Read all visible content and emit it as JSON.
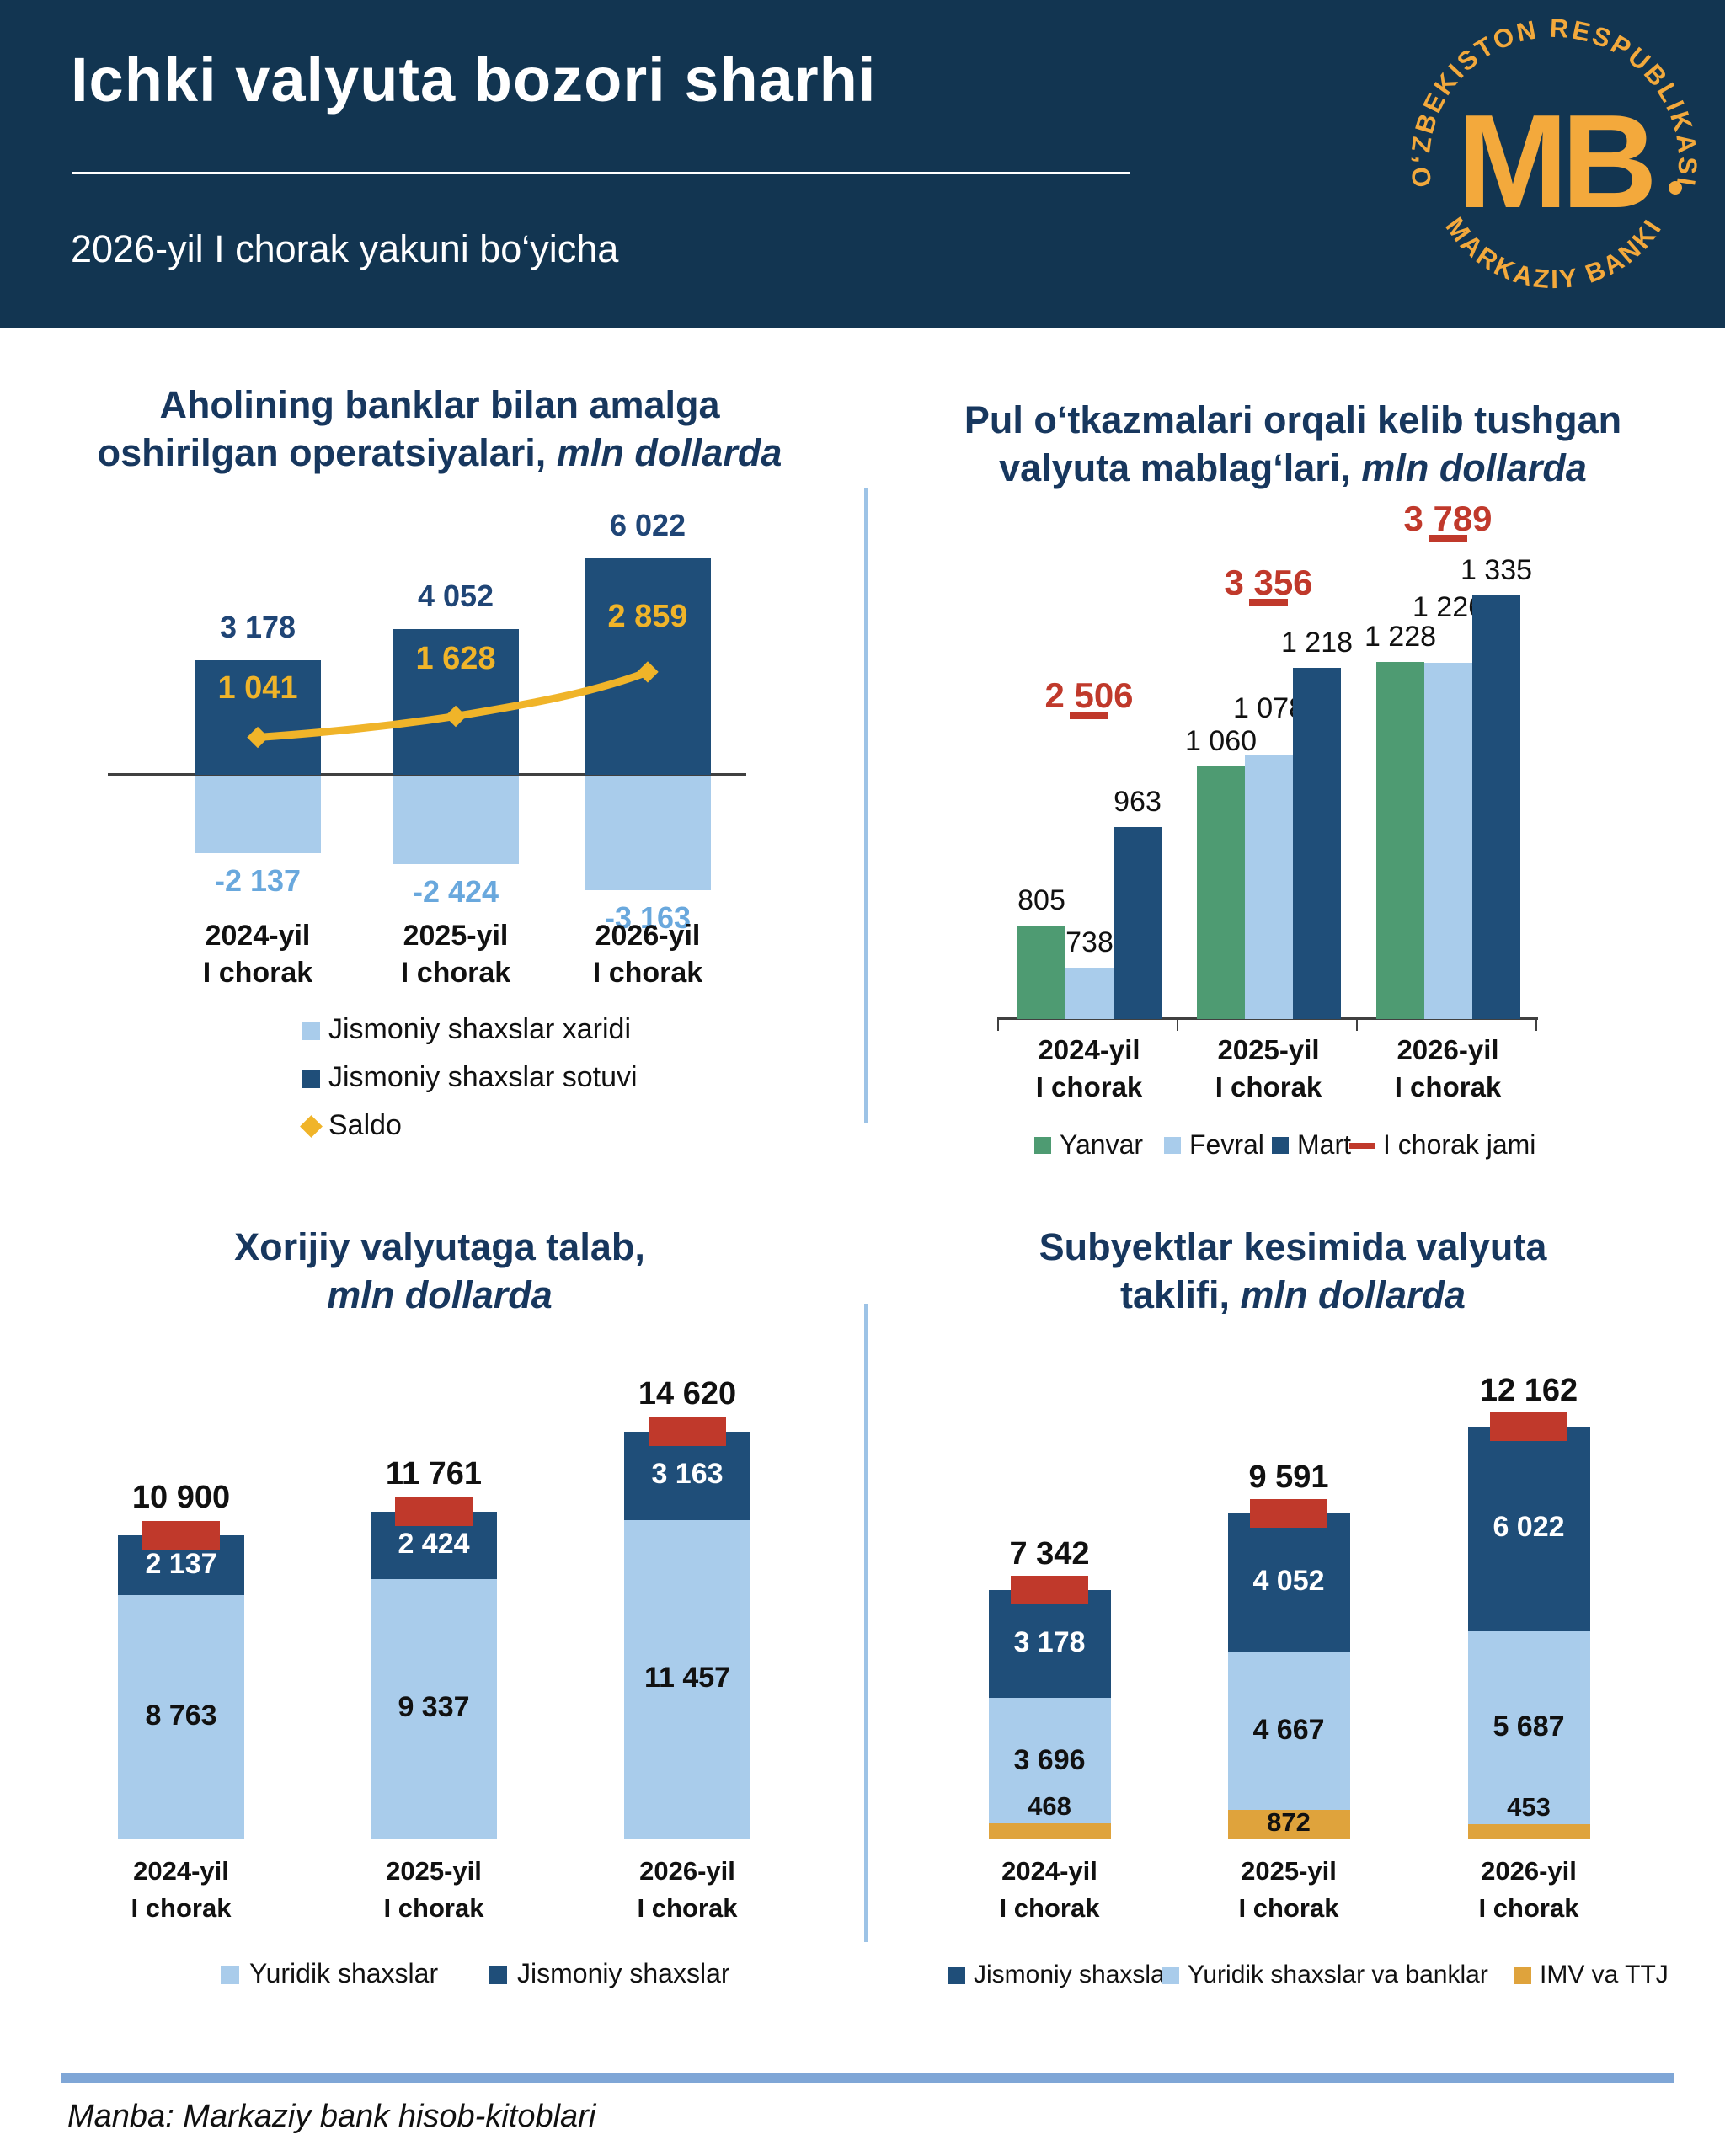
{
  "header": {
    "title": "Ichki valyuta  bozori sharhi",
    "subtitle": "2026-yil I chorak yakuni bo‘yicha",
    "logo": {
      "arc_top": "O‘ZBEKISTON RESPUBLIKASI",
      "arc_bottom": "MARKAZIY BANKI",
      "bullet": "•",
      "monogram": "MB"
    }
  },
  "footer": {
    "source": "Manba: Markaziy bank hisob-kitoblari"
  },
  "colors": {
    "navy_bg": "#123551",
    "title_navy": "#17375E",
    "dark_blue": "#1F4E79",
    "light_blue": "#A9CCEB",
    "green": "#4E9B72",
    "yellow": "#F0B429",
    "gold": "#DFA33C",
    "red": "#C0392B",
    "value_navy": "#1F4576",
    "neg_blue": "#69A8DD",
    "text_dark": "#111111",
    "axis_gray": "#404040",
    "separator": "#9DC3E6",
    "footer_rule": "#7FA6D6",
    "logo_orange": "#F3A93C",
    "white": "#FFFFFF"
  },
  "chart_data": [
    {
      "id": "operations",
      "type": "bar",
      "title_line1": "Aholining banklar bilan amalga",
      "title_line2": "oshirilgan operatsiyalari,",
      "title_italic": "mln dollarda",
      "categories": [
        [
          "2024-yil",
          "I chorak"
        ],
        [
          "2025-yil",
          "I chorak"
        ],
        [
          "2026-yil",
          "I chorak"
        ]
      ],
      "series": [
        {
          "name": "Jismoniy shaxslar xaridi",
          "color_key": "light_blue",
          "values": [
            -2137,
            -2424,
            -3163
          ]
        },
        {
          "name": "Jismoniy shaxslar sotuvi",
          "color_key": "dark_blue",
          "values": [
            3178,
            4052,
            6022
          ]
        },
        {
          "name": "Saldo",
          "type": "line",
          "color_key": "yellow",
          "values": [
            1041,
            1628,
            2859
          ]
        }
      ],
      "ylim": [
        -3500,
        6500
      ],
      "grid": false,
      "legend_position": "bottom-left-column"
    },
    {
      "id": "transfers",
      "type": "bar",
      "title_line1": "Pul o‘tkazmalari orqali kelib tushgan",
      "title_line2": "valyuta mablag‘lari,",
      "title_italic": "mln dollarda",
      "categories": [
        [
          "2024-yil",
          "I chorak"
        ],
        [
          "2025-yil",
          "I chorak"
        ],
        [
          "2026-yil",
          "I chorak"
        ]
      ],
      "series": [
        {
          "name": "Yanvar",
          "color_key": "green",
          "values": [
            805,
            1060,
            1228
          ]
        },
        {
          "name": "Fevral",
          "color_key": "light_blue",
          "values": [
            738,
            1078,
            1226
          ]
        },
        {
          "name": "Mart",
          "color_key": "dark_blue",
          "values": [
            963,
            1218,
            1335
          ]
        }
      ],
      "totals": {
        "name": "I chorak jami",
        "color_key": "red",
        "values": [
          2506,
          3356,
          3789
        ]
      },
      "ylim": [
        655,
        1400
      ],
      "grid": false,
      "legend_position": "bottom-row"
    },
    {
      "id": "demand",
      "type": "bar",
      "title_line1": "Xorijiy valyutaga talab,",
      "title_line2": "",
      "title_italic": "mln dollarda",
      "categories": [
        [
          "2024-yil",
          "I chorak"
        ],
        [
          "2025-yil",
          "I chorak"
        ],
        [
          "2026-yil",
          "I chorak"
        ]
      ],
      "series": [
        {
          "name": "Yuridik shaxslar",
          "color_key": "light_blue",
          "label_color": "#111111",
          "values": [
            8763,
            9337,
            11457
          ]
        },
        {
          "name": "Jismoniy shaxslar",
          "color_key": "dark_blue",
          "label_color": "#FFFFFF",
          "values": [
            2137,
            2424,
            3163
          ]
        }
      ],
      "totals": {
        "name": "",
        "color_key": "red",
        "values": [
          10900,
          11761,
          14620
        ]
      },
      "ylim": [
        0,
        15500
      ],
      "grid": false,
      "legend_position": "bottom-row"
    },
    {
      "id": "supply",
      "type": "bar",
      "title_line1": "Subyektlar kesimida valyuta",
      "title_line2": "taklifi,",
      "title_italic": "mln dollarda",
      "categories": [
        [
          "2024-yil",
          "I chorak"
        ],
        [
          "2025-yil",
          "I chorak"
        ],
        [
          "2026-yil",
          "I chorak"
        ]
      ],
      "series": [
        {
          "name": "IMV va TTJ",
          "color_key": "gold",
          "label_color": "#111111",
          "values": [
            468,
            872,
            453
          ]
        },
        {
          "name": "Yuridik shaxslar va banklar",
          "color_key": "light_blue",
          "label_color": "#111111",
          "values": [
            3696,
            4667,
            5687
          ]
        },
        {
          "name": "Jismoniy shaxslar",
          "color_key": "dark_blue",
          "label_color": "#FFFFFF",
          "values": [
            3178,
            4052,
            6022
          ]
        }
      ],
      "totals": {
        "name": "",
        "color_key": "red",
        "values": [
          7342,
          9591,
          12162
        ]
      },
      "legend_display_order": [
        2,
        1,
        0
      ],
      "ylim": [
        0,
        13000
      ],
      "grid": false,
      "legend_position": "bottom-row"
    }
  ]
}
